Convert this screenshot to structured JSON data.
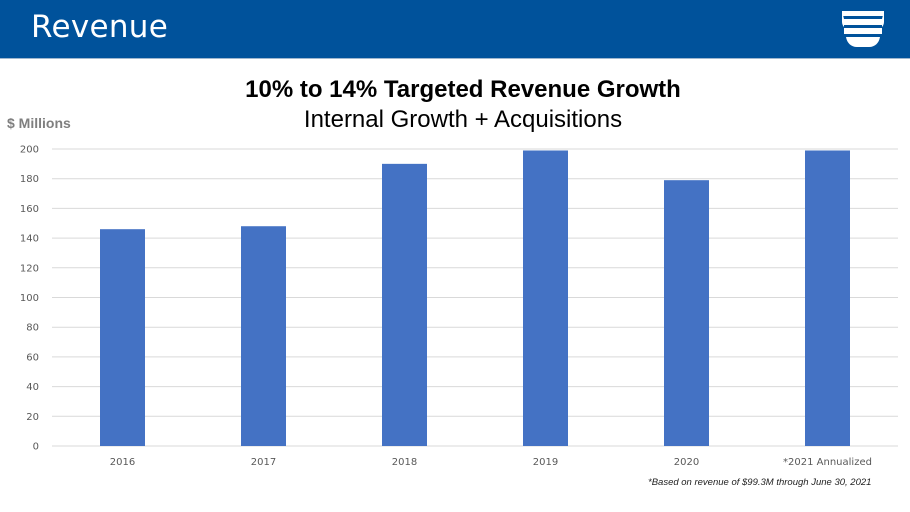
{
  "header": {
    "title": "Revenue",
    "logo_icon": "company-shield-logo-icon"
  },
  "colors": {
    "header_bg": "#00529b",
    "bar": "#4472c4",
    "gridline": "#d9d9d9",
    "ylabel": "#7f7f7f"
  },
  "chart_data": {
    "type": "bar",
    "title": "10% to 14% Targeted Revenue Growth",
    "subtitle": "Internal Growth + Acquisitions",
    "xlabel": "",
    "ylabel": "$ Millions",
    "categories": [
      "2016",
      "2017",
      "2018",
      "2019",
      "2020",
      "*2021 Annualized"
    ],
    "values": [
      146,
      148,
      190,
      199,
      179,
      199
    ],
    "ylim": [
      0,
      200
    ],
    "yticks": [
      0,
      20,
      40,
      60,
      80,
      100,
      120,
      140,
      160,
      180,
      200
    ],
    "grid": true,
    "legend": "none",
    "footnote": "*Based on revenue of $99.3M through June 30, 2021"
  }
}
